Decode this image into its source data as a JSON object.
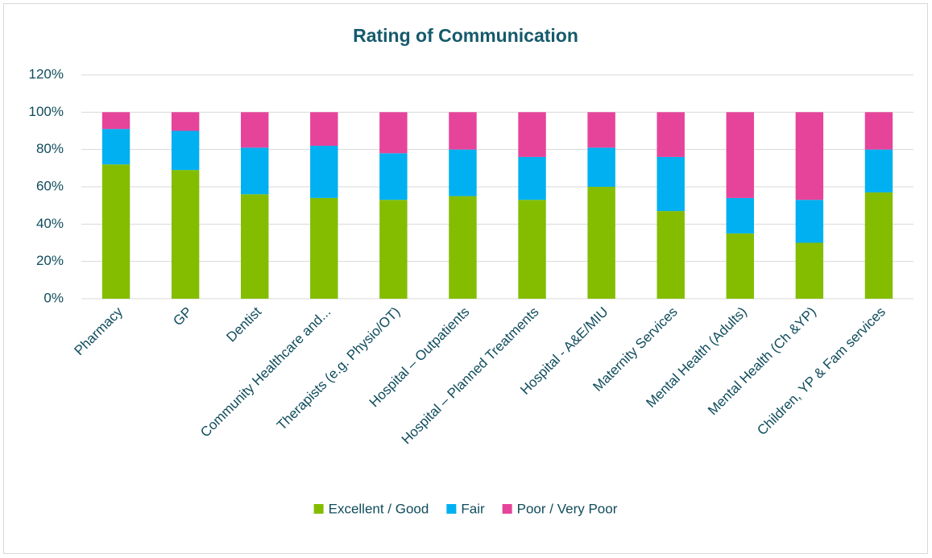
{
  "chart_data": {
    "type": "stacked_bar",
    "title": "Rating of Communication",
    "categories": [
      "Pharmacy",
      "GP",
      "Dentist",
      "Community Healthcare and...",
      "Therapists (e.g. Physio/OT)",
      "Hospital – Outpatients",
      "Hospital – Planned Treatments",
      "Hospital - A&E/MIU",
      "Maternity Services",
      "Mental Health (Adults)",
      "Mental Health (Ch &YP)",
      "Children, YP & Fam services"
    ],
    "series": [
      {
        "name": "Excellent / Good",
        "color": "#84bd00",
        "values": [
          72,
          69,
          56,
          54,
          53,
          55,
          53,
          60,
          47,
          35,
          30,
          57
        ]
      },
      {
        "name": "Fair",
        "color": "#00b0f0",
        "values": [
          19,
          21,
          25,
          28,
          25,
          25,
          23,
          21,
          29,
          19,
          23,
          23
        ]
      },
      {
        "name": "Poor / Very Poor",
        "color": "#e6449a",
        "values": [
          9,
          10,
          19,
          18,
          22,
          20,
          24,
          19,
          24,
          46,
          47,
          20
        ]
      }
    ],
    "ylim": [
      0,
      120
    ],
    "yticks": [
      {
        "value": 0,
        "label": "0%"
      },
      {
        "value": 20,
        "label": "20%"
      },
      {
        "value": 40,
        "label": "40%"
      },
      {
        "value": 60,
        "label": "60%"
      },
      {
        "value": 80,
        "label": "80%"
      },
      {
        "value": 100,
        "label": "100%"
      },
      {
        "value": 120,
        "label": "120%"
      }
    ],
    "grid": true,
    "legend": "bottom"
  }
}
